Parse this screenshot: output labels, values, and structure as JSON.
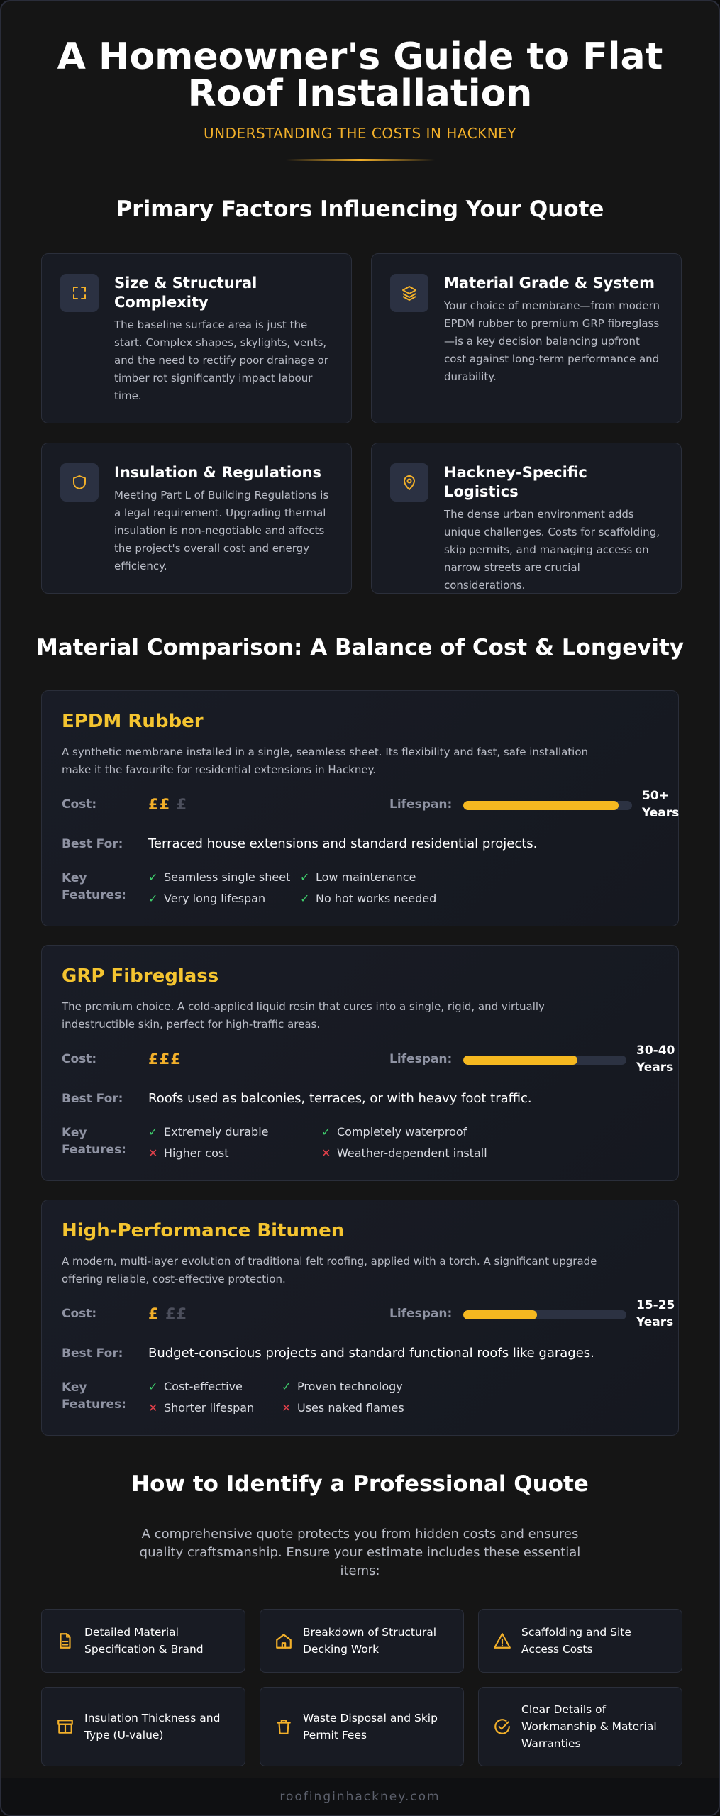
{
  "header": {
    "title": "A Homeowner's Guide to Flat Roof Installation",
    "subtitle": "UNDERSTANDING THE COSTS IN HACKNEY"
  },
  "factors": {
    "title": "Primary Factors Influencing Your Quote",
    "items": [
      {
        "icon": "expand-icon",
        "title": "Size & Structural Complexity",
        "text": "The baseline surface area is just the start. Complex shapes, skylights, vents, and the need to rectify poor drainage or timber rot significantly impact labour time."
      },
      {
        "icon": "layers-icon",
        "title": "Material Grade & System",
        "text": "Your choice of membrane—from modern EPDM rubber to premium GRP fibreglass—is a key decision balancing upfront cost against long-term performance and durability."
      },
      {
        "icon": "shield-icon",
        "title": "Insulation & Regulations",
        "text": "Meeting Part L of Building Regulations is a legal requirement. Upgrading thermal insulation is non-negotiable and affects the project's overall cost and energy efficiency."
      },
      {
        "icon": "map-pin-icon",
        "title": "Hackney-Specific Logistics",
        "text": "The dense urban environment adds unique challenges. Costs for scaffolding, skip permits, and managing access on narrow streets are crucial considerations."
      }
    ]
  },
  "materials": {
    "title": "Material Comparison: A Balance of Cost & Longevity",
    "labels": {
      "cost": "Cost:",
      "lifespan": "Lifespan:",
      "best_for": "Best For:",
      "key_features": "Key Features:"
    },
    "items": [
      {
        "name": "EPDM Rubber",
        "description": "A synthetic membrane installed in a single, seamless sheet. Its flexibility and fast, safe installation make it the favourite for residential extensions in Hackney.",
        "cost_on": "££",
        "cost_off": "£",
        "lifespan_fraction": 0.92,
        "lifespan": "50+ Years",
        "best_for": "Terraced house extensions and standard residential projects.",
        "features": [
          {
            "ok": true,
            "mark": "✓",
            "text": "Seamless single sheet"
          },
          {
            "ok": true,
            "mark": "✓",
            "text": "Low maintenance"
          },
          {
            "ok": true,
            "mark": "✓",
            "text": "Very long lifespan"
          },
          {
            "ok": true,
            "mark": "✓",
            "text": "No hot works needed"
          }
        ]
      },
      {
        "name": "GRP Fibreglass",
        "description": "The premium choice. A cold-applied liquid resin that cures into a single, rigid, and virtually indestructible skin, perfect for high-traffic areas.",
        "cost_on": "£££",
        "cost_off": "",
        "lifespan_fraction": 0.7,
        "lifespan": "30-40 Years",
        "best_for": "Roofs used as balconies, terraces, or with heavy foot traffic.",
        "features": [
          {
            "ok": true,
            "mark": "✓",
            "text": "Extremely durable"
          },
          {
            "ok": true,
            "mark": "✓",
            "text": "Completely waterproof"
          },
          {
            "ok": false,
            "mark": "✕",
            "text": "Higher cost"
          },
          {
            "ok": false,
            "mark": "✕",
            "text": "Weather-dependent install"
          }
        ]
      },
      {
        "name": "High-Performance Bitumen",
        "description": "A modern, multi-layer evolution of traditional felt roofing, applied with a torch. A significant upgrade offering reliable, cost-effective protection.",
        "cost_on": "£",
        "cost_off": "££",
        "lifespan_fraction": 0.45,
        "lifespan": "15-25 Years",
        "best_for": "Budget-conscious projects and standard functional roofs like garages.",
        "features": [
          {
            "ok": true,
            "mark": "✓",
            "text": "Cost-effective"
          },
          {
            "ok": true,
            "mark": "✓",
            "text": "Proven technology"
          },
          {
            "ok": false,
            "mark": "✕",
            "text": "Shorter lifespan"
          },
          {
            "ok": false,
            "mark": "✕",
            "text": "Uses naked flames"
          }
        ]
      }
    ]
  },
  "quote": {
    "title": "How to Identify a Professional Quote",
    "intro": "A comprehensive quote protects you from hidden costs and ensures quality craftsmanship. Ensure your estimate includes these essential items:",
    "items": [
      {
        "icon": "document-icon",
        "text": "Detailed Material Specification & Brand"
      },
      {
        "icon": "house-icon",
        "text": "Breakdown of Structural Decking Work"
      },
      {
        "icon": "warning-icon",
        "text": "Scaffolding and Site Access Costs"
      },
      {
        "icon": "insulation-layers-icon",
        "text": "Insulation Thickness and Type (U-value)"
      },
      {
        "icon": "bin-icon",
        "text": "Waste Disposal and Skip Permit Fees"
      },
      {
        "icon": "check-circle-icon",
        "text": "Clear Details of Workmanship & Material Warranties"
      }
    ]
  },
  "footer": {
    "text": "roofinginhackney.com"
  },
  "colors": {
    "accent": "#f2b02a",
    "heading_yellow": "#f4c430",
    "bar": "#f5b820",
    "positive": "#3ecb6b",
    "negative": "#e0404a"
  }
}
